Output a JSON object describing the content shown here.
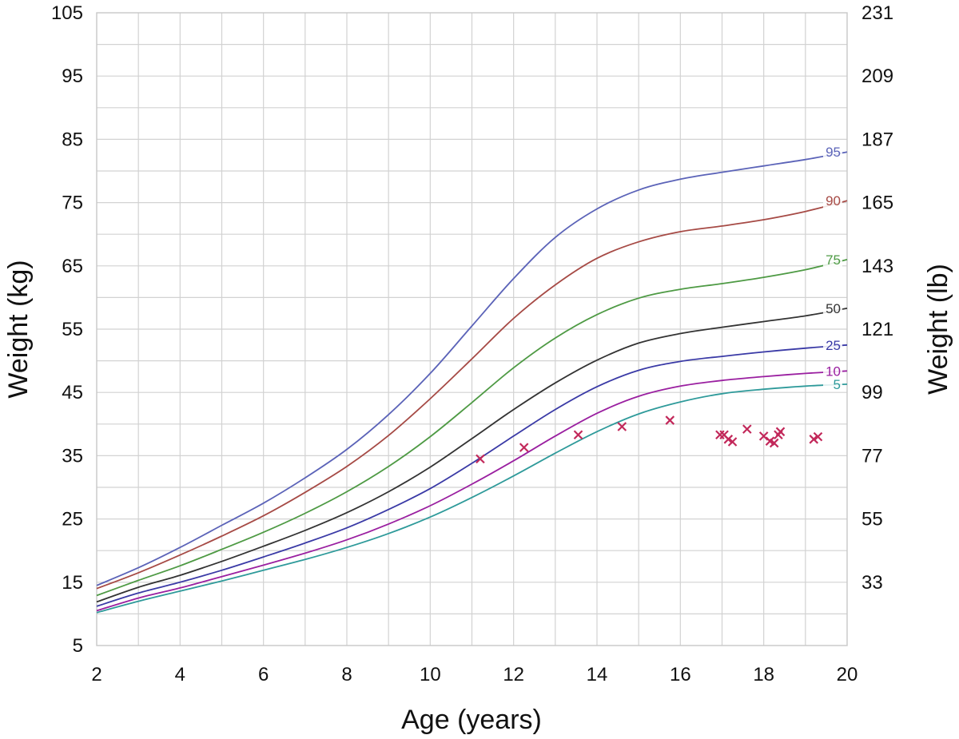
{
  "chart_data": {
    "type": "line",
    "xlabel": "Age (years)",
    "ylabel": "Weight (kg)",
    "y2label": "Weight (lb)",
    "xlim": [
      2,
      20
    ],
    "ylim": [
      5,
      105
    ],
    "x_ticks": [
      "2",
      "4",
      "6",
      "8",
      "10",
      "12",
      "14",
      "16",
      "18",
      "20"
    ],
    "y_ticks": [
      "5",
      "15",
      "25",
      "35",
      "45",
      "55",
      "65",
      "75",
      "85",
      "95",
      "105"
    ],
    "y2_ticks": [
      "33",
      "55",
      "77",
      "99",
      "121",
      "143",
      "165",
      "187",
      "209",
      "231"
    ],
    "grid": true,
    "x": [
      2,
      3,
      4,
      5,
      6,
      7,
      8,
      9,
      10,
      11,
      12,
      13,
      14,
      15,
      16,
      17,
      18,
      19,
      20
    ],
    "series": [
      {
        "name": "95",
        "color": "#5b63b8",
        "values": [
          14.5,
          17.3,
          20.5,
          24.0,
          27.5,
          31.5,
          36.0,
          41.5,
          48.0,
          55.5,
          63.0,
          69.5,
          74.0,
          77.0,
          78.7,
          79.8,
          80.8,
          81.8,
          83.0
        ]
      },
      {
        "name": "90",
        "color": "#a64a45",
        "values": [
          14.0,
          16.5,
          19.3,
          22.3,
          25.5,
          29.2,
          33.3,
          38.2,
          44.0,
          50.3,
          56.7,
          62.0,
          66.2,
          68.8,
          70.4,
          71.3,
          72.3,
          73.6,
          75.3
        ]
      },
      {
        "name": "75",
        "color": "#4e9a44",
        "values": [
          12.9,
          15.3,
          17.6,
          20.2,
          22.9,
          25.9,
          29.3,
          33.3,
          38.0,
          43.4,
          48.9,
          53.6,
          57.3,
          59.9,
          61.3,
          62.2,
          63.2,
          64.4,
          66.0
        ]
      },
      {
        "name": "50",
        "color": "#333333",
        "values": [
          11.9,
          14.2,
          16.1,
          18.3,
          20.7,
          23.2,
          26.0,
          29.3,
          33.2,
          37.7,
          42.3,
          46.5,
          50.1,
          52.8,
          54.3,
          55.3,
          56.2,
          57.1,
          58.3
        ]
      },
      {
        "name": "25",
        "color": "#3a3aa6",
        "values": [
          11.2,
          13.3,
          15.0,
          16.9,
          19.0,
          21.2,
          23.6,
          26.5,
          29.8,
          33.8,
          38.1,
          42.3,
          45.9,
          48.5,
          49.9,
          50.7,
          51.4,
          52.0,
          52.5
        ]
      },
      {
        "name": "10",
        "color": "#9a1fa0",
        "values": [
          10.5,
          12.5,
          14.1,
          15.9,
          17.7,
          19.6,
          21.7,
          24.2,
          27.1,
          30.5,
          34.2,
          38.1,
          41.7,
          44.4,
          46.0,
          46.9,
          47.5,
          48.0,
          48.4
        ]
      },
      {
        "name": "5",
        "color": "#2e9a9a",
        "values": [
          10.2,
          12.0,
          13.6,
          15.2,
          16.9,
          18.6,
          20.5,
          22.7,
          25.3,
          28.4,
          31.8,
          35.4,
          38.8,
          41.6,
          43.5,
          44.8,
          45.5,
          46.0,
          46.3
        ]
      }
    ],
    "points": {
      "color": "#c2285a",
      "x": [
        11.2,
        12.25,
        13.55,
        14.6,
        15.75,
        16.95,
        17.05,
        17.15,
        17.25,
        17.6,
        18.0,
        18.15,
        18.25,
        18.35,
        18.4,
        19.2,
        19.3
      ],
      "y": [
        34.5,
        36.3,
        38.3,
        39.6,
        40.6,
        38.3,
        38.3,
        37.6,
        37.2,
        39.2,
        38.1,
        37.3,
        37.0,
        38.3,
        38.8,
        37.6,
        38.0
      ]
    }
  }
}
